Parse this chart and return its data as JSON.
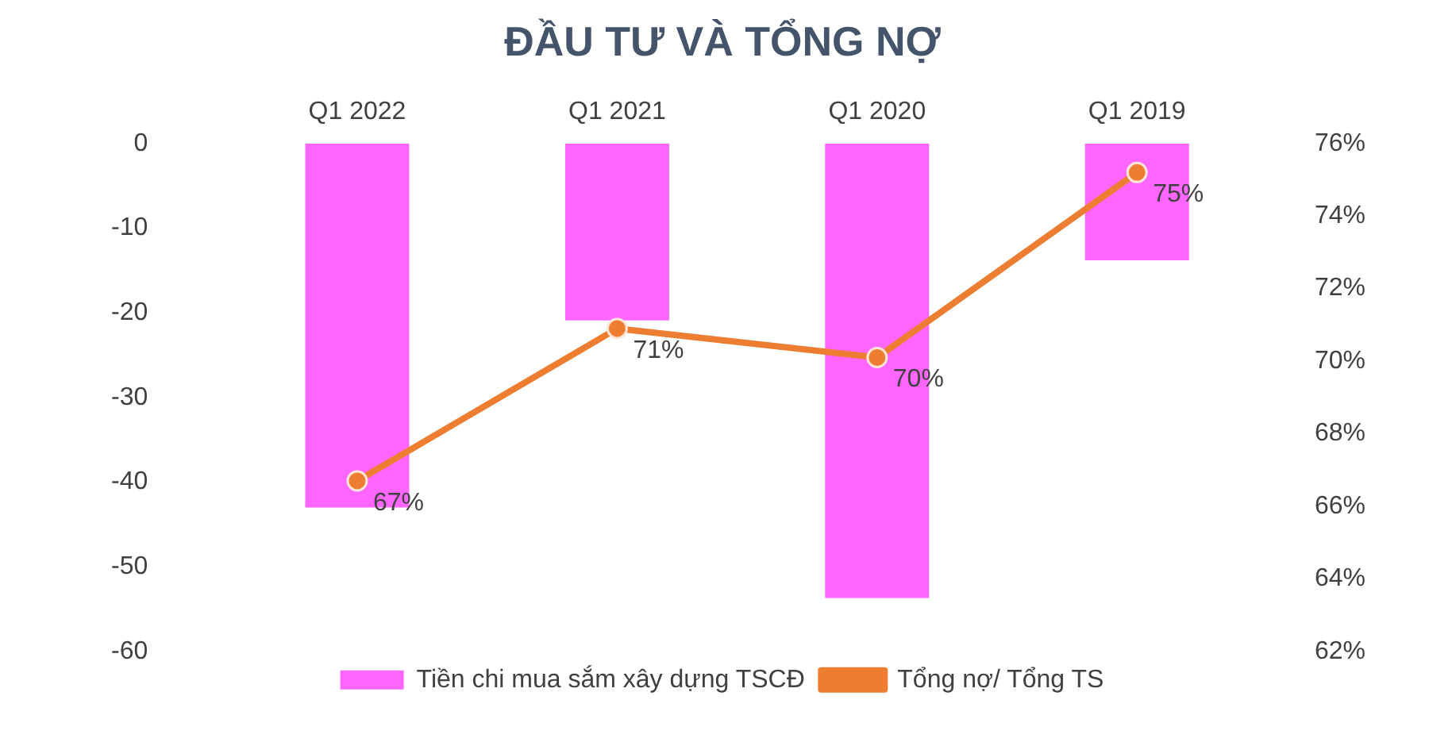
{
  "chart_data": {
    "type": "bar",
    "title": "ĐẦU TƯ VÀ TỔNG NỢ",
    "categories": [
      "Q1 2022",
      "Q1 2021",
      "Q1 2020",
      "Q1 2019"
    ],
    "series": [
      {
        "name": "Tiền chi mua sắm xây dựng TSCĐ",
        "color": "#ff66ff",
        "values": [
          -43,
          -20.9,
          -53.7,
          -13.8
        ]
      },
      {
        "name": "Tổng nợ/ Tổng TS",
        "type": "line",
        "axis": "y2",
        "color": "#ed7d31",
        "values": [
          66.7,
          70.9,
          70.1,
          75.2
        ],
        "value_labels": [
          "67%",
          "71%",
          "70%",
          "75%"
        ]
      }
    ],
    "ylim": [
      -60,
      0
    ],
    "yticks": [
      -60,
      -50,
      -40,
      -30,
      -20,
      -10,
      0
    ],
    "y2lim": [
      62,
      76
    ],
    "y2ticks": [
      {
        "value": 62,
        "label": "62%"
      },
      {
        "value": 64,
        "label": "64%"
      },
      {
        "value": 66,
        "label": "66%"
      },
      {
        "value": 68,
        "label": "68%"
      },
      {
        "value": 70,
        "label": "70%"
      },
      {
        "value": 72,
        "label": "72%"
      },
      {
        "value": 74,
        "label": "74%"
      },
      {
        "value": 76,
        "label": "76%"
      }
    ],
    "marker": "circle",
    "grid": false,
    "legend": "bottom"
  }
}
